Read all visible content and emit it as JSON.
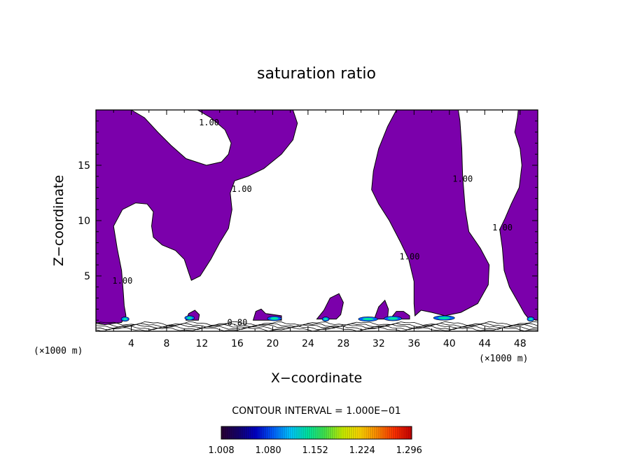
{
  "chart_data": {
    "type": "heatmap",
    "title": "saturation ratio",
    "xlabel": "X−coordinate",
    "ylabel": "Z−coordinate",
    "x_unit_left": "(×1000 m)",
    "x_unit_right": "(×1000 m)",
    "xlim": [
      0,
      50
    ],
    "ylim": [
      0,
      20
    ],
    "x_ticks": [
      4,
      8,
      12,
      16,
      20,
      24,
      28,
      32,
      36,
      40,
      44,
      48
    ],
    "y_ticks": [
      5,
      10,
      15
    ],
    "contour_interval_note": "CONTOUR INTERVAL = 1.000E−01",
    "contour_labels": [
      {
        "text": "1.00",
        "x": 12.8,
        "y": 18.6
      },
      {
        "text": "1.00",
        "x": 16.5,
        "y": 12.6
      },
      {
        "text": "1.00",
        "x": 41.5,
        "y": 13.5
      },
      {
        "text": "1.00",
        "x": 46.0,
        "y": 9.1
      },
      {
        "text": "1.00",
        "x": 35.5,
        "y": 6.5
      },
      {
        "text": "1.00",
        "x": 3.0,
        "y": 4.3
      },
      {
        "text": "0.80",
        "x": 16.0,
        "y": 0.55
      }
    ],
    "supersaturated_regions": [
      {
        "name": "region-west",
        "fill": "#7b00ab",
        "outline": [
          [
            0,
            20
          ],
          [
            4.0,
            20
          ],
          [
            5.5,
            19.3
          ],
          [
            7.0,
            18.0
          ],
          [
            8.5,
            16.8
          ],
          [
            10.2,
            15.6
          ],
          [
            12.5,
            15.0
          ],
          [
            14.2,
            15.3
          ],
          [
            15.0,
            16.0
          ],
          [
            15.3,
            17.0
          ],
          [
            14.6,
            18.2
          ],
          [
            13.0,
            19.3
          ],
          [
            11.5,
            20
          ],
          [
            22.3,
            20
          ],
          [
            22.8,
            18.8
          ],
          [
            22.3,
            17.3
          ],
          [
            21.0,
            16.0
          ],
          [
            19.0,
            14.7
          ],
          [
            17.2,
            14.0
          ],
          [
            15.7,
            13.6
          ],
          [
            15.2,
            12.5
          ],
          [
            15.4,
            11.0
          ],
          [
            15.0,
            9.3
          ],
          [
            14.0,
            8.0
          ],
          [
            13.0,
            6.5
          ],
          [
            11.8,
            5.0
          ],
          [
            10.8,
            4.6
          ],
          [
            10.5,
            5.3
          ],
          [
            10.0,
            6.5
          ],
          [
            9.0,
            7.3
          ],
          [
            7.5,
            7.8
          ],
          [
            6.5,
            8.5
          ],
          [
            6.3,
            9.5
          ],
          [
            6.5,
            10.8
          ],
          [
            5.8,
            11.5
          ],
          [
            4.5,
            11.6
          ],
          [
            3.0,
            11.0
          ],
          [
            2.0,
            9.5
          ],
          [
            2.4,
            7.5
          ],
          [
            2.9,
            5.5
          ],
          [
            3.1,
            3.5
          ],
          [
            3.2,
            2.3
          ],
          [
            3.4,
            1.4
          ],
          [
            2.9,
            0.8
          ],
          [
            1.0,
            0.6
          ],
          [
            0,
            0.8
          ]
        ]
      },
      {
        "name": "region-center-east",
        "fill": "#7b00ab",
        "outline": [
          [
            34.0,
            20
          ],
          [
            41.0,
            20
          ],
          [
            41.2,
            19.0
          ],
          [
            41.4,
            16.5
          ],
          [
            41.5,
            14.0
          ],
          [
            41.8,
            11.0
          ],
          [
            42.2,
            9.0
          ],
          [
            43.5,
            7.5
          ],
          [
            44.5,
            6.0
          ],
          [
            44.4,
            4.2
          ],
          [
            43.2,
            2.5
          ],
          [
            41.3,
            1.7
          ],
          [
            39.5,
            1.4
          ],
          [
            38.0,
            1.7
          ],
          [
            36.8,
            1.9
          ],
          [
            36.1,
            1.4
          ],
          [
            36.0,
            2.5
          ],
          [
            36.0,
            4.5
          ],
          [
            35.4,
            6.5
          ],
          [
            34.5,
            8.0
          ],
          [
            33.2,
            10.0
          ],
          [
            32.0,
            11.5
          ],
          [
            31.2,
            12.8
          ],
          [
            31.4,
            14.5
          ],
          [
            32.0,
            16.5
          ],
          [
            33.0,
            18.5
          ]
        ]
      },
      {
        "name": "region-east",
        "fill": "#7b00ab",
        "outline": [
          [
            47.8,
            20
          ],
          [
            50.0,
            20
          ],
          [
            50.0,
            1.0
          ],
          [
            49.0,
            1.1
          ],
          [
            48.5,
            1.6
          ],
          [
            47.8,
            2.6
          ],
          [
            46.8,
            4.0
          ],
          [
            46.2,
            5.5
          ],
          [
            46.0,
            7.5
          ],
          [
            45.7,
            9.2
          ],
          [
            46.3,
            10.2
          ],
          [
            47.0,
            11.5
          ],
          [
            47.9,
            13.0
          ],
          [
            48.2,
            15.0
          ],
          [
            48.0,
            16.5
          ],
          [
            47.4,
            18.0
          ],
          [
            47.7,
            19.3
          ]
        ]
      },
      {
        "name": "blob-26",
        "fill": "#7b00ab",
        "outline": [
          [
            25.0,
            1.1
          ],
          [
            25.8,
            1.9
          ],
          [
            26.5,
            3.0
          ],
          [
            27.5,
            3.4
          ],
          [
            28.0,
            2.6
          ],
          [
            27.7,
            1.5
          ],
          [
            27.2,
            1.1
          ]
        ]
      },
      {
        "name": "blob-32",
        "fill": "#7b00ab",
        "outline": [
          [
            31.5,
            1.1
          ],
          [
            32.0,
            2.2
          ],
          [
            32.7,
            2.8
          ],
          [
            33.1,
            2.0
          ],
          [
            33.0,
            1.1
          ]
        ]
      },
      {
        "name": "blob-18",
        "fill": "#7b00ab",
        "outline": [
          [
            17.8,
            1.0
          ],
          [
            18.1,
            1.8
          ],
          [
            18.7,
            2.0
          ],
          [
            19.2,
            1.6
          ],
          [
            21.0,
            1.4
          ],
          [
            21.0,
            1.0
          ]
        ]
      },
      {
        "name": "blob-34",
        "fill": "#7b00ab",
        "outline": [
          [
            33.3,
            1.1
          ],
          [
            34.0,
            1.8
          ],
          [
            34.8,
            1.8
          ],
          [
            35.5,
            1.4
          ],
          [
            35.5,
            1.1
          ]
        ]
      },
      {
        "name": "blob-11",
        "fill": "#7b00ab",
        "outline": [
          [
            10.2,
            1.0
          ],
          [
            10.5,
            1.6
          ],
          [
            11.2,
            1.9
          ],
          [
            11.7,
            1.5
          ],
          [
            11.6,
            1.0
          ]
        ]
      }
    ],
    "colorbar": {
      "min": 1.008,
      "max": 1.3,
      "tick_labels": [
        "1.008",
        "1.080",
        "1.152",
        "1.224",
        "1.296"
      ],
      "colors": [
        "#2a0033",
        "#14006e",
        "#0000c8",
        "#0060ff",
        "#00c8ff",
        "#00e6a0",
        "#44e64a",
        "#c8f000",
        "#ffd700",
        "#ff8a00",
        "#ff3000",
        "#c80000"
      ]
    }
  }
}
